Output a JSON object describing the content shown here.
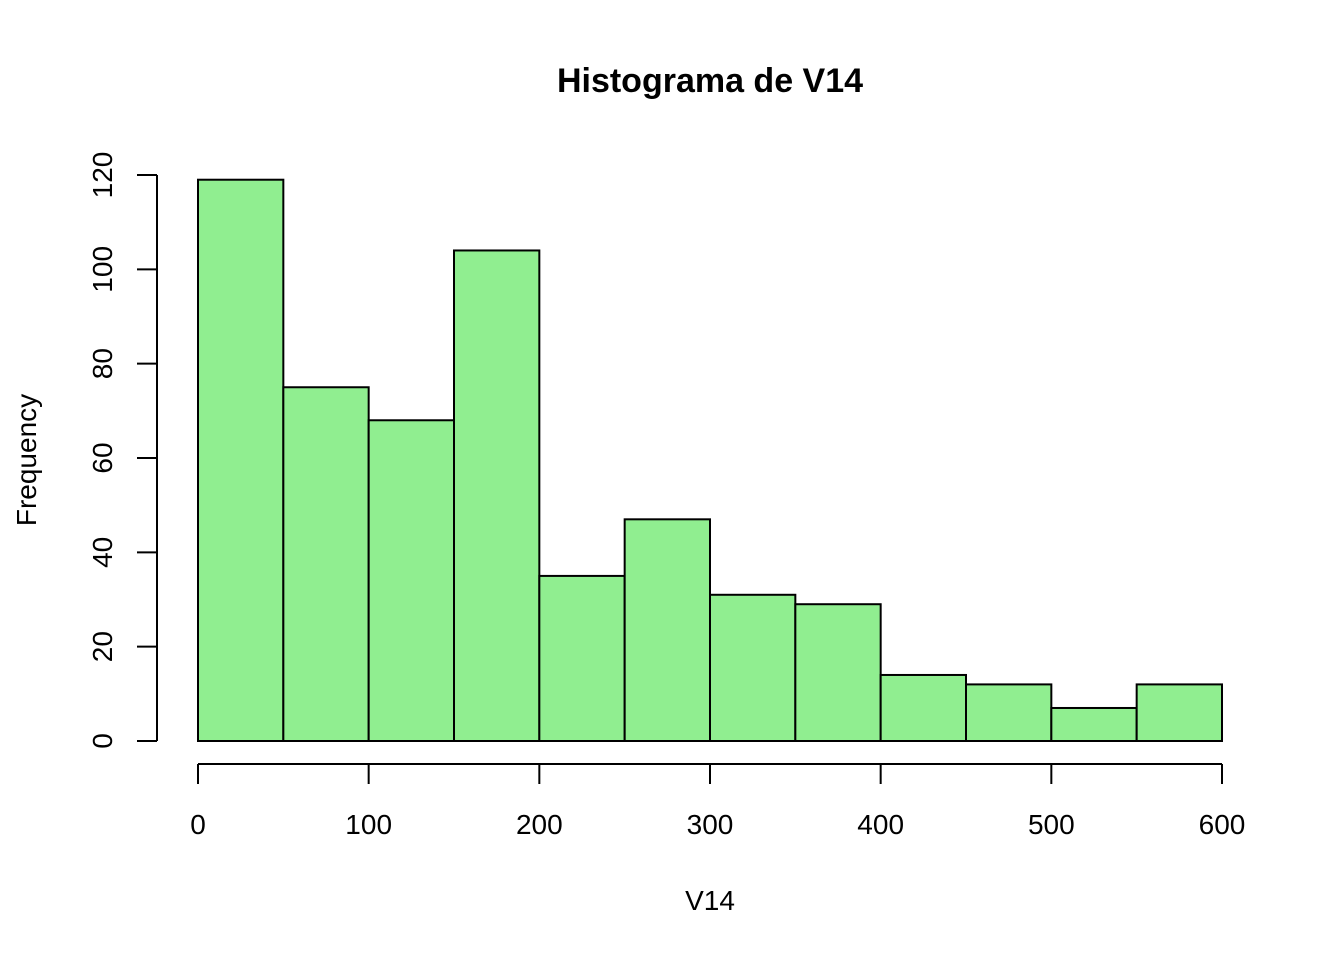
{
  "chart_data": {
    "type": "bar",
    "title": "Histograma de V14",
    "xlabel": "V14",
    "ylabel": "Frequency",
    "bins": [
      {
        "from": 0,
        "to": 50,
        "count": 119
      },
      {
        "from": 50,
        "to": 100,
        "count": 75
      },
      {
        "from": 100,
        "to": 150,
        "count": 68
      },
      {
        "from": 150,
        "to": 200,
        "count": 104
      },
      {
        "from": 200,
        "to": 250,
        "count": 35
      },
      {
        "from": 250,
        "to": 300,
        "count": 47
      },
      {
        "from": 300,
        "to": 350,
        "count": 31
      },
      {
        "from": 350,
        "to": 400,
        "count": 29
      },
      {
        "from": 400,
        "to": 450,
        "count": 14
      },
      {
        "from": 450,
        "to": 500,
        "count": 12
      },
      {
        "from": 500,
        "to": 550,
        "count": 7
      },
      {
        "from": 550,
        "to": 600,
        "count": 12
      }
    ],
    "xlim": [
      0,
      600
    ],
    "ylim": [
      0,
      120
    ],
    "xticks": [
      0,
      100,
      200,
      300,
      400,
      500,
      600
    ],
    "yticks": [
      0,
      20,
      40,
      60,
      80,
      100,
      120
    ],
    "bar_color": "#90EE90",
    "grid": false
  }
}
